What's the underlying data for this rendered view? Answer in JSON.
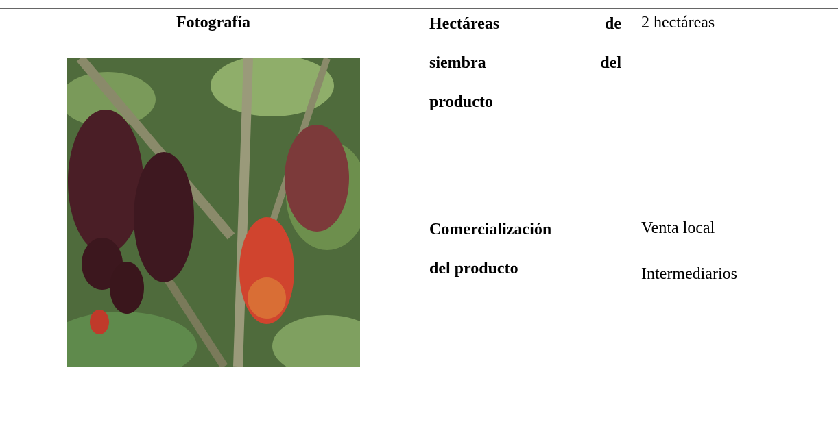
{
  "header": {
    "photo_label": "Fotografía"
  },
  "rows": [
    {
      "label_lines": [
        "Hectáreas de",
        "siembra del",
        "producto"
      ],
      "values": [
        "2 hectáreas"
      ]
    },
    {
      "label_lines": [
        "Comercialización",
        "del producto"
      ],
      "values": [
        "Venta local",
        "Intermediarios"
      ]
    }
  ]
}
